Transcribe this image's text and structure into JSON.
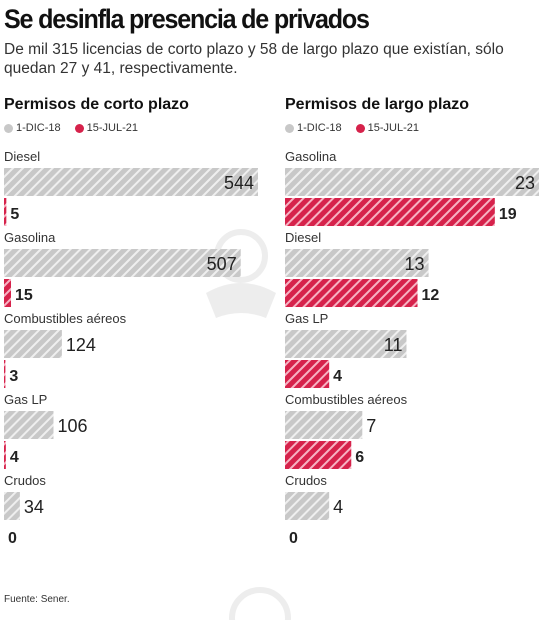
{
  "header": {
    "title": "Se desinfla presencia de privados",
    "subtitle": "De mil 315 licencias de corto plazo y 58 de largo plazo que existían, sólo quedan 27 y 41, respectivamente."
  },
  "colors": {
    "old": "#c8c8c8",
    "old_stripe": "#efefef",
    "new": "#d6224b",
    "new_stripe": "#f7b3c3"
  },
  "legend": {
    "old_label": "1-DIC-18",
    "new_label": "15-JUL-21"
  },
  "source": "Fuente: Sener.",
  "chart_data": [
    {
      "type": "bar",
      "title": "Permisos de corto plazo",
      "categories": [
        "Diesel",
        "Gasolina",
        "Combustibles aéreos",
        "Gas LP",
        "Crudos"
      ],
      "series": [
        {
          "name": "1-DIC-18",
          "values": [
            544,
            507,
            124,
            106,
            34
          ]
        },
        {
          "name": "15-JUL-21",
          "values": [
            5,
            15,
            3,
            4,
            0
          ]
        }
      ],
      "xlim": [
        0,
        544
      ],
      "grid": false,
      "legend": "top-left"
    },
    {
      "type": "bar",
      "title": "Permisos de largo plazo",
      "categories": [
        "Gasolina",
        "Diesel",
        "Gas LP",
        "Combustibles aéreos",
        "Crudos"
      ],
      "series": [
        {
          "name": "1-DIC-18",
          "values": [
            23,
            13,
            11,
            7,
            4
          ]
        },
        {
          "name": "15-JUL-21",
          "values": [
            19,
            12,
            4,
            6,
            0
          ]
        }
      ],
      "xlim": [
        0,
        23
      ],
      "grid": false,
      "legend": "top-left"
    }
  ]
}
